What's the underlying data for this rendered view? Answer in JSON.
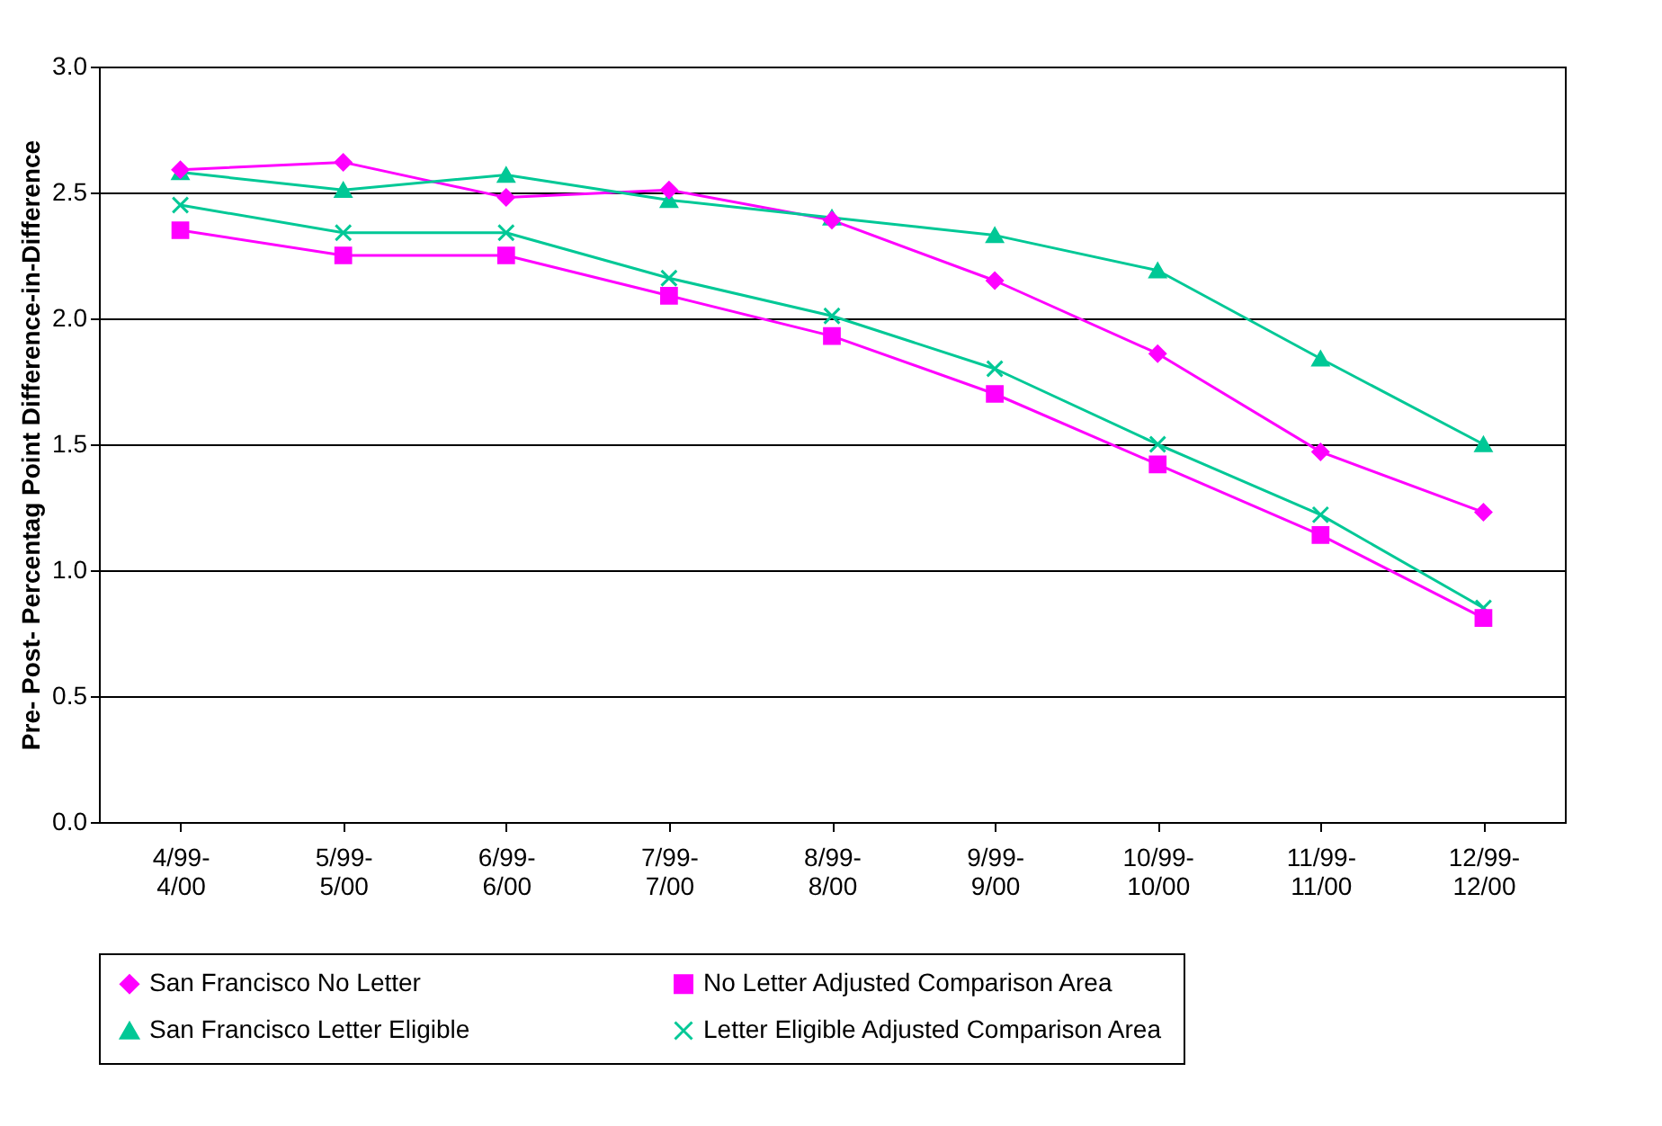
{
  "chart_data": {
    "type": "line",
    "ylabel": "Pre- Post- Percentag Point Difference-in-Difference",
    "categories": [
      "4/99-\n4/00",
      "5/99-\n5/00",
      "6/99-\n6/00",
      "7/99-\n7/00",
      "8/99-\n8/00",
      "9/99-\n9/00",
      "10/99-\n10/00",
      "11/99-\n11/00",
      "12/99-\n12/00"
    ],
    "ylim": [
      0,
      3
    ],
    "yticks": [
      {
        "value": 0,
        "label": "0.0"
      },
      {
        "value": 0.5,
        "label": "0.5"
      },
      {
        "value": 1,
        "label": "1.0"
      },
      {
        "value": 1.5,
        "label": "1.5"
      },
      {
        "value": 2,
        "label": "2.0"
      },
      {
        "value": 2.5,
        "label": "2.5"
      },
      {
        "value": 3,
        "label": "3.0"
      }
    ],
    "grid": "y",
    "legend": "bottom",
    "series": [
      {
        "name": "San Francisco No Letter",
        "color": "#ff00ff",
        "marker": "diamond",
        "values": [
          2.59,
          2.62,
          2.48,
          2.51,
          2.39,
          2.15,
          1.86,
          1.47,
          1.23
        ]
      },
      {
        "name": "No Letter Adjusted Comparison Area",
        "color": "#ff00ff",
        "marker": "square",
        "values": [
          2.35,
          2.25,
          2.25,
          2.09,
          1.93,
          1.7,
          1.42,
          1.14,
          0.81
        ]
      },
      {
        "name": "San Francisco Letter Eligible",
        "color": "#00c896",
        "marker": "triangle",
        "values": [
          2.58,
          2.51,
          2.57,
          2.47,
          2.4,
          2.33,
          2.19,
          1.84,
          1.5
        ]
      },
      {
        "name": "Letter Eligible Adjusted Comparison Area",
        "color": "#00c896",
        "marker": "cross",
        "values": [
          2.45,
          2.34,
          2.34,
          2.16,
          2.01,
          1.8,
          1.5,
          1.22,
          0.85
        ]
      }
    ]
  }
}
